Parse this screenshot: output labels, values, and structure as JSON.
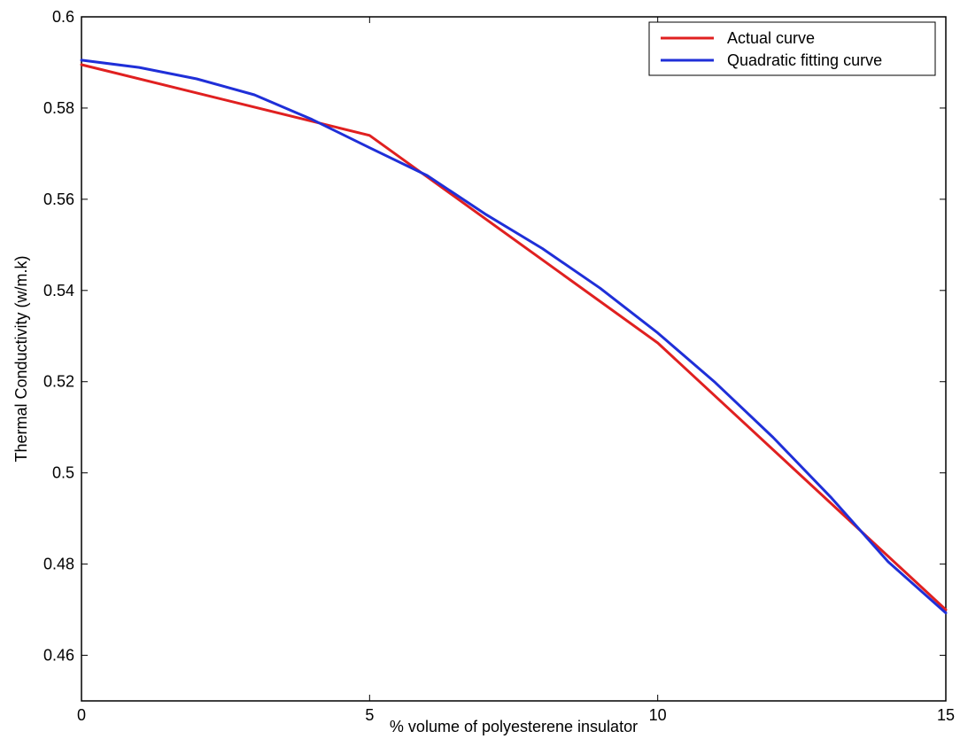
{
  "chart_data": {
    "type": "line",
    "title": "",
    "xlabel": "% volume of polyesterene insulator",
    "ylabel": "Thermal Conductivity  (w/m.k)",
    "xlim": [
      0,
      15
    ],
    "ylim": [
      0.45,
      0.6
    ],
    "xticks": [
      0,
      5,
      10,
      15
    ],
    "xtick_labels": [
      "0",
      "5",
      "10",
      "15"
    ],
    "yticks": [
      0.46,
      0.48,
      0.5,
      0.52,
      0.54,
      0.56,
      0.58,
      0.6
    ],
    "ytick_labels": [
      "0.46",
      "0.48",
      "0.5",
      "0.52",
      "0.54",
      "0.56",
      "0.58",
      "0.6"
    ],
    "grid": false,
    "legend_position": "top-right",
    "series": [
      {
        "name": "Actual curve",
        "color": "#e02020",
        "x": [
          0,
          5,
          10,
          15
        ],
        "y": [
          0.5895,
          0.574,
          0.5285,
          0.47
        ]
      },
      {
        "name": "Quadratic fitting curve",
        "color": "#1f2fd8",
        "x": [
          0,
          1,
          2,
          3,
          4,
          5,
          6,
          7,
          8,
          9,
          10,
          11,
          12,
          13,
          14,
          15
        ],
        "y": [
          0.5905,
          0.5889,
          0.5864,
          0.5829,
          0.5775,
          0.5713,
          0.5652,
          0.5568,
          0.5492,
          0.5405,
          0.5307,
          0.5198,
          0.5078,
          0.4947,
          0.4805,
          0.4693
        ]
      }
    ]
  }
}
